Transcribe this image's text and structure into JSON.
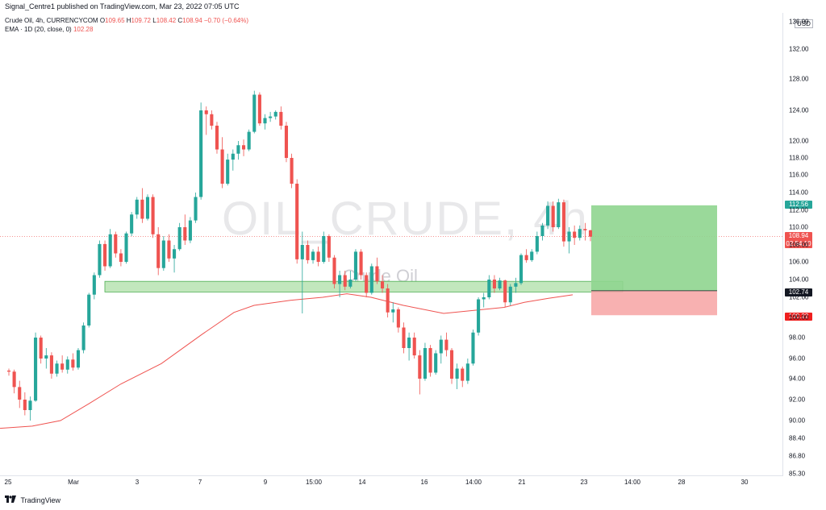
{
  "header": {
    "published_text": "Signal_Centre1 published on TradingView.com, Mar 23, 2022 07:05 UTC"
  },
  "legend": {
    "symbol": "Crude Oil, 4h, CURRENCYCOM",
    "ohlc_prefix_o": "O",
    "open": "109.65",
    "ohlc_prefix_h": "H",
    "high": "109.72",
    "ohlc_prefix_l": "L",
    "low": "108.42",
    "ohlc_prefix_c": "C",
    "close": "108.94",
    "change": "−0.70 (−0.64%)",
    "ema_label": "EMA · 1D (20, close, 0)",
    "ema_value": "102.28"
  },
  "watermark": {
    "main": "OIL_CRUDE, 4h",
    "sub": "Crude Oil"
  },
  "y_axis": {
    "currency": "USD",
    "ticks": [
      "136.00",
      "132.00",
      "128.00",
      "124.00",
      "120.00",
      "118.00",
      "116.00",
      "114.00",
      "112.00",
      "110.00",
      "108.00",
      "106.00",
      "104.00",
      "102.00",
      "100.00",
      "98.00",
      "96.00",
      "94.00",
      "92.00",
      "90.00",
      "88.40",
      "86.80",
      "85.30"
    ]
  },
  "x_axis": {
    "ticks": [
      "25",
      "Mar",
      "3",
      "7",
      "9",
      "15:00",
      "14",
      "16",
      "14:00",
      "21",
      "23",
      "14:00",
      "28",
      "30"
    ]
  },
  "price_tags": {
    "take_profit": "112.56",
    "last": "108.94",
    "countdown": "02:54:10",
    "entry": "102.74",
    "stop_loss": "100.22"
  },
  "colors": {
    "up": "#26a69a",
    "down": "#ef5350",
    "ema": "#ef5350",
    "profit_zone": "#8fd58f",
    "loss_zone": "#f7a9a9",
    "support_zone": "#b7e3b2"
  },
  "footer": {
    "brand": "TradingView"
  },
  "chart_data": {
    "type": "candlestick",
    "symbol": "Crude Oil, 4h",
    "ylim": [
      85.3,
      137
    ],
    "last_price": 108.94,
    "ema_20": 102.28,
    "position": {
      "entry": 102.74,
      "take_profit": 112.56,
      "stop_loss": 100.22
    },
    "support_zone": [
      102.6,
      103.8
    ],
    "candles": [
      [
        94.8,
        95.0,
        94.3,
        94.7
      ],
      [
        94.7,
        94.9,
        92.6,
        93.2
      ],
      [
        93.2,
        93.8,
        91.2,
        92.0
      ],
      [
        92.0,
        92.7,
        90.5,
        91.0
      ],
      [
        91.0,
        92.3,
        90.0,
        91.9
      ],
      [
        91.9,
        98.5,
        91.8,
        98.0
      ],
      [
        98.0,
        98.2,
        95.5,
        96.0
      ],
      [
        96.0,
        97.0,
        95.0,
        96.3
      ],
      [
        96.3,
        96.6,
        94.0,
        94.5
      ],
      [
        94.5,
        95.8,
        94.2,
        95.5
      ],
      [
        95.5,
        96.3,
        94.6,
        94.9
      ],
      [
        94.9,
        96.2,
        94.5,
        95.9
      ],
      [
        95.9,
        96.5,
        94.8,
        95.1
      ],
      [
        95.1,
        97.0,
        94.9,
        96.8
      ],
      [
        96.8,
        99.5,
        96.5,
        99.2
      ],
      [
        99.2,
        102.5,
        99.0,
        102.3
      ],
      [
        102.3,
        104.8,
        101.8,
        104.5
      ],
      [
        104.5,
        108.5,
        104.2,
        108.1
      ],
      [
        108.1,
        108.5,
        105.0,
        105.5
      ],
      [
        105.5,
        109.8,
        105.3,
        109.2
      ],
      [
        109.2,
        109.5,
        106.5,
        107.0
      ],
      [
        107.0,
        107.5,
        105.5,
        106.0
      ],
      [
        106.0,
        109.5,
        105.8,
        109.3
      ],
      [
        109.3,
        111.8,
        109.0,
        111.5
      ],
      [
        111.5,
        113.5,
        111.0,
        113.2
      ],
      [
        113.2,
        114.5,
        110.5,
        111.0
      ],
      [
        111.0,
        113.8,
        110.8,
        113.5
      ],
      [
        113.5,
        113.8,
        108.8,
        109.2
      ],
      [
        109.2,
        110.0,
        104.5,
        105.3
      ],
      [
        105.3,
        109.0,
        105.0,
        108.5
      ],
      [
        108.5,
        109.2,
        106.0,
        106.4
      ],
      [
        106.4,
        108.0,
        104.8,
        107.5
      ],
      [
        107.5,
        110.5,
        107.3,
        110.0
      ],
      [
        110.0,
        111.5,
        108.0,
        108.5
      ],
      [
        108.5,
        111.2,
        108.2,
        110.8
      ],
      [
        110.8,
        114.0,
        110.5,
        113.5
      ],
      [
        113.5,
        125.0,
        113.2,
        124.0
      ],
      [
        124.0,
        124.5,
        120.8,
        123.5
      ],
      [
        123.5,
        124.0,
        121.5,
        122.0
      ],
      [
        122.0,
        122.5,
        118.5,
        119.0
      ],
      [
        119.0,
        120.5,
        114.5,
        115.0
      ],
      [
        115.0,
        118.5,
        114.8,
        117.8
      ],
      [
        117.8,
        119.0,
        116.5,
        118.5
      ],
      [
        118.5,
        120.0,
        117.8,
        119.5
      ],
      [
        119.5,
        120.2,
        118.2,
        119.0
      ],
      [
        119.0,
        121.5,
        118.8,
        121.2
      ],
      [
        121.2,
        126.5,
        121.0,
        126.0
      ],
      [
        126.0,
        126.3,
        122.0,
        122.3
      ],
      [
        122.3,
        123.5,
        121.5,
        123.0
      ],
      [
        123.0,
        123.8,
        122.5,
        123.2
      ],
      [
        123.2,
        124.0,
        122.8,
        123.8
      ],
      [
        123.8,
        124.5,
        121.5,
        122.0
      ],
      [
        122.0,
        122.5,
        117.5,
        118.0
      ],
      [
        118.0,
        118.5,
        114.5,
        115.0
      ],
      [
        115.0,
        115.5,
        105.8,
        106.3
      ],
      [
        106.3,
        109.5,
        100.4,
        108.0
      ],
      [
        108.0,
        108.5,
        105.8,
        106.2
      ],
      [
        106.2,
        107.5,
        105.8,
        107.2
      ],
      [
        107.2,
        107.8,
        105.5,
        106.0
      ],
      [
        106.0,
        109.5,
        105.8,
        109.0
      ],
      [
        109.0,
        109.2,
        106.0,
        106.5
      ],
      [
        106.5,
        106.8,
        103.0,
        103.5
      ],
      [
        103.5,
        105.0,
        102.0,
        104.5
      ],
      [
        104.5,
        105.0,
        102.8,
        103.2
      ],
      [
        103.2,
        105.0,
        103.0,
        104.0
      ],
      [
        104.0,
        107.5,
        103.8,
        107.2
      ],
      [
        107.2,
        107.5,
        104.0,
        104.5
      ],
      [
        104.5,
        104.8,
        102.0,
        102.5
      ],
      [
        102.5,
        105.8,
        102.3,
        105.5
      ],
      [
        105.5,
        106.5,
        103.5,
        103.8
      ],
      [
        103.8,
        104.5,
        102.5,
        103.0
      ],
      [
        103.0,
        103.5,
        100.0,
        100.5
      ],
      [
        100.5,
        101.5,
        99.5,
        100.8
      ],
      [
        100.8,
        101.0,
        98.5,
        99.0
      ],
      [
        99.0,
        99.5,
        96.5,
        97.0
      ],
      [
        97.0,
        98.5,
        95.8,
        98.0
      ],
      [
        98.0,
        98.5,
        96.0,
        96.3
      ],
      [
        96.3,
        96.8,
        92.5,
        94.0
      ],
      [
        94.0,
        97.5,
        93.8,
        97.0
      ],
      [
        97.0,
        97.3,
        94.2,
        94.6
      ],
      [
        94.6,
        96.8,
        94.4,
        96.5
      ],
      [
        96.5,
        98.2,
        95.5,
        97.8
      ],
      [
        97.8,
        98.5,
        96.2,
        96.8
      ],
      [
        96.8,
        97.0,
        93.5,
        94.0
      ],
      [
        94.0,
        95.5,
        93.0,
        95.0
      ],
      [
        95.0,
        95.2,
        93.2,
        93.8
      ],
      [
        93.8,
        96.0,
        93.5,
        95.5
      ],
      [
        95.5,
        98.8,
        95.3,
        98.5
      ],
      [
        98.5,
        102.0,
        98.2,
        101.8
      ],
      [
        101.8,
        102.5,
        101.0,
        102.0
      ],
      [
        102.0,
        104.5,
        101.8,
        104.0
      ],
      [
        104.0,
        104.5,
        102.5,
        103.0
      ],
      [
        103.0,
        104.2,
        102.8,
        103.9
      ],
      [
        103.9,
        104.0,
        101.0,
        101.5
      ],
      [
        101.5,
        103.5,
        101.2,
        103.2
      ],
      [
        103.2,
        104.2,
        102.5,
        103.6
      ],
      [
        103.6,
        107.0,
        103.4,
        106.8
      ],
      [
        106.8,
        107.5,
        105.9,
        106.2
      ],
      [
        106.2,
        107.5,
        106.0,
        107.2
      ],
      [
        107.2,
        109.5,
        106.9,
        109.0
      ],
      [
        109.0,
        110.5,
        108.5,
        110.2
      ],
      [
        110.2,
        113.0,
        109.8,
        112.5
      ],
      [
        112.5,
        113.0,
        109.5,
        110.0
      ],
      [
        110.0,
        113.3,
        109.8,
        112.9
      ],
      [
        112.9,
        113.2,
        107.8,
        108.4
      ],
      [
        108.4,
        110.0,
        107.0,
        109.5
      ],
      [
        109.5,
        110.2,
        108.0,
        108.8
      ],
      [
        108.8,
        110.2,
        108.5,
        109.8
      ],
      [
        109.8,
        110.5,
        108.5,
        109.65
      ],
      [
        109.65,
        109.72,
        108.42,
        108.94
      ]
    ]
  }
}
